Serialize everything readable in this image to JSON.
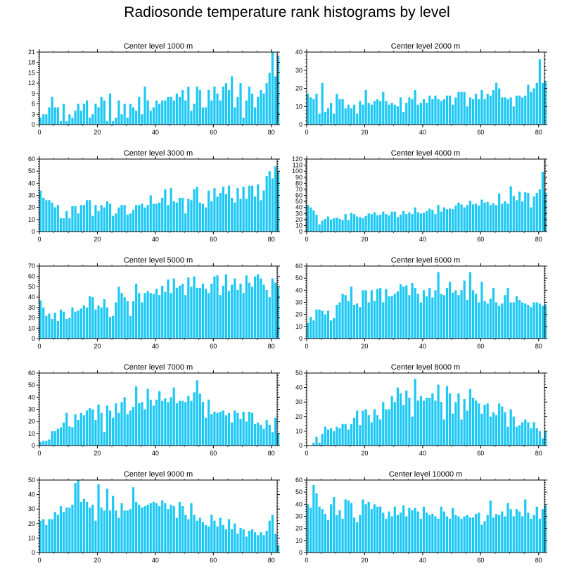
{
  "title": "Radiosonde temperature rank histograms by level",
  "colors": {
    "bar": "#1ec8f4",
    "axis": "#000000",
    "background": "#ffffff"
  },
  "chart_data": [
    {
      "type": "bar",
      "title": "Center level 1000 m",
      "ylim": [
        0,
        21
      ],
      "yticks": [
        0,
        3,
        6,
        9,
        12,
        15,
        18,
        21
      ],
      "xlim": [
        0,
        82
      ],
      "xticks": [
        0,
        20,
        40,
        60,
        80
      ],
      "values": [
        2,
        3,
        3,
        5,
        8,
        5,
        5,
        1,
        6,
        1,
        3,
        2,
        4,
        6,
        4,
        6,
        7,
        2,
        3,
        6,
        5,
        8,
        7,
        1,
        9,
        1,
        2,
        7,
        3,
        6,
        2,
        6,
        5,
        4,
        8,
        3,
        11,
        7,
        4,
        5,
        7,
        6,
        7,
        7,
        8,
        8,
        7,
        9,
        8,
        10,
        7,
        11,
        4,
        6,
        11,
        10,
        5,
        5,
        10,
        7,
        11,
        9,
        7,
        11,
        12,
        10,
        14,
        5,
        8,
        12,
        2,
        7,
        11,
        9,
        5,
        8,
        10,
        9,
        12,
        15,
        21,
        14,
        20
      ]
    },
    {
      "type": "bar",
      "title": "Center level 2000 m",
      "ylim": [
        0,
        40
      ],
      "yticks": [
        0,
        10,
        20,
        30,
        40
      ],
      "xlim": [
        0,
        82
      ],
      "xticks": [
        0,
        20,
        40,
        60,
        80
      ],
      "values": [
        17,
        15,
        14,
        17,
        6,
        23,
        7,
        9,
        12,
        6,
        17,
        14,
        14,
        9,
        11,
        9,
        11,
        6,
        13,
        11,
        19,
        12,
        11,
        13,
        14,
        13,
        18,
        13,
        11,
        12,
        11,
        10,
        15,
        7,
        12,
        15,
        14,
        19,
        11,
        12,
        14,
        12,
        16,
        14,
        16,
        14,
        13,
        14,
        16,
        16,
        11,
        15,
        18,
        18,
        18,
        10,
        15,
        14,
        17,
        14,
        19,
        14,
        17,
        16,
        19,
        23,
        20,
        15,
        15,
        14,
        15,
        10,
        16,
        16,
        15,
        16,
        22,
        18,
        20,
        23,
        36,
        23,
        24
      ]
    },
    {
      "type": "bar",
      "title": "Center level 3000 m",
      "ylim": [
        0,
        60
      ],
      "yticks": [
        0,
        10,
        20,
        30,
        40,
        50,
        60
      ],
      "xlim": [
        0,
        82
      ],
      "xticks": [
        0,
        20,
        40,
        60,
        80
      ],
      "values": [
        34,
        28,
        26,
        26,
        24,
        20,
        22,
        11,
        11,
        17,
        11,
        21,
        21,
        15,
        22,
        22,
        26,
        26,
        13,
        22,
        17,
        22,
        20,
        25,
        23,
        13,
        15,
        20,
        22,
        22,
        14,
        15,
        18,
        22,
        22,
        23,
        20,
        22,
        30,
        23,
        23,
        24,
        28,
        35,
        22,
        36,
        25,
        24,
        28,
        28,
        15,
        27,
        26,
        35,
        37,
        24,
        23,
        20,
        34,
        25,
        36,
        29,
        32,
        37,
        31,
        38,
        28,
        24,
        36,
        27,
        37,
        27,
        38,
        38,
        29,
        39,
        26,
        34,
        46,
        50,
        44,
        54,
        50
      ]
    },
    {
      "type": "bar",
      "title": "Center level 4000 m",
      "ylim": [
        0,
        120
      ],
      "yticks": [
        0,
        10,
        20,
        30,
        40,
        50,
        60,
        70,
        80,
        90,
        100,
        110,
        120
      ],
      "xlim": [
        0,
        82
      ],
      "xticks": [
        0,
        20,
        40,
        60,
        80
      ],
      "values": [
        44,
        40,
        35,
        28,
        12,
        18,
        21,
        25,
        20,
        22,
        23,
        21,
        19,
        29,
        19,
        31,
        29,
        25,
        24,
        22,
        26,
        30,
        29,
        32,
        27,
        28,
        33,
        29,
        27,
        33,
        33,
        24,
        28,
        34,
        29,
        32,
        29,
        40,
        32,
        30,
        31,
        34,
        38,
        36,
        29,
        44,
        33,
        40,
        37,
        38,
        37,
        43,
        48,
        45,
        40,
        44,
        51,
        45,
        46,
        43,
        53,
        48,
        49,
        44,
        47,
        44,
        63,
        46,
        50,
        46,
        75,
        59,
        52,
        66,
        50,
        65,
        64,
        40,
        58,
        64,
        70,
        99,
        65
      ]
    },
    {
      "type": "bar",
      "title": "Center level 5000 m",
      "ylim": [
        0,
        70
      ],
      "yticks": [
        0,
        10,
        20,
        30,
        40,
        50,
        60,
        70
      ],
      "xlim": [
        0,
        82
      ],
      "xticks": [
        0,
        20,
        40,
        60,
        80
      ],
      "values": [
        37,
        30,
        22,
        24,
        19,
        25,
        17,
        28,
        26,
        19,
        20,
        30,
        26,
        27,
        29,
        32,
        30,
        41,
        40,
        28,
        32,
        30,
        38,
        30,
        21,
        22,
        35,
        50,
        44,
        40,
        36,
        22,
        36,
        53,
        44,
        35,
        44,
        46,
        44,
        43,
        48,
        42,
        51,
        45,
        57,
        44,
        58,
        49,
        51,
        53,
        42,
        59,
        50,
        60,
        49,
        49,
        53,
        48,
        44,
        53,
        60,
        61,
        42,
        51,
        62,
        46,
        52,
        58,
        47,
        53,
        44,
        61,
        54,
        50,
        60,
        62,
        58,
        52,
        47,
        40,
        58,
        54,
        50
      ]
    },
    {
      "type": "bar",
      "title": "Center level 6000 m",
      "ylim": [
        0,
        60
      ],
      "yticks": [
        0,
        10,
        20,
        30,
        40,
        50,
        60
      ],
      "xlim": [
        0,
        82
      ],
      "xticks": [
        0,
        20,
        40,
        60,
        80
      ],
      "values": [
        13,
        18,
        15,
        24,
        24,
        23,
        20,
        23,
        15,
        17,
        28,
        30,
        37,
        36,
        31,
        43,
        28,
        29,
        26,
        40,
        40,
        30,
        40,
        31,
        41,
        42,
        30,
        41,
        35,
        35,
        37,
        39,
        45,
        43,
        44,
        36,
        46,
        42,
        37,
        30,
        40,
        35,
        42,
        34,
        40,
        55,
        37,
        36,
        42,
        47,
        38,
        40,
        36,
        40,
        48,
        32,
        55,
        40,
        37,
        30,
        47,
        31,
        29,
        33,
        42,
        30,
        27,
        29,
        36,
        42,
        30,
        30,
        35,
        32,
        30,
        29,
        28,
        26,
        30,
        30,
        29,
        27,
        28
      ]
    },
    {
      "type": "bar",
      "title": "Center level 7000 m",
      "ylim": [
        0,
        60
      ],
      "yticks": [
        0,
        10,
        20,
        30,
        40,
        50,
        60
      ],
      "xlim": [
        0,
        82
      ],
      "xticks": [
        0,
        20,
        40,
        60,
        80
      ],
      "values": [
        3,
        4,
        4,
        5,
        12,
        12,
        14,
        15,
        19,
        27,
        16,
        15,
        26,
        21,
        27,
        25,
        29,
        31,
        30,
        21,
        34,
        27,
        11,
        33,
        29,
        23,
        35,
        27,
        36,
        40,
        26,
        29,
        32,
        49,
        35,
        36,
        30,
        47,
        38,
        33,
        38,
        45,
        37,
        39,
        36,
        40,
        48,
        35,
        37,
        37,
        36,
        41,
        37,
        44,
        54,
        43,
        36,
        23,
        38,
        26,
        28,
        27,
        28,
        29,
        25,
        27,
        19,
        29,
        27,
        22,
        28,
        20,
        28,
        27,
        18,
        19,
        17,
        14,
        21,
        17,
        11,
        23,
        10
      ]
    },
    {
      "type": "bar",
      "title": "Center level 8000 m",
      "ylim": [
        0,
        50
      ],
      "yticks": [
        0,
        10,
        20,
        30,
        40,
        50
      ],
      "xlim": [
        0,
        82
      ],
      "xticks": [
        0,
        20,
        40,
        60,
        80
      ],
      "values": [
        0,
        0,
        2,
        6,
        2,
        8,
        13,
        11,
        12,
        10,
        13,
        12,
        15,
        15,
        11,
        15,
        19,
        24,
        14,
        24,
        25,
        21,
        16,
        25,
        21,
        18,
        30,
        25,
        25,
        34,
        30,
        40,
        36,
        28,
        38,
        33,
        20,
        46,
        31,
        34,
        31,
        33,
        33,
        36,
        31,
        42,
        30,
        18,
        41,
        36,
        22,
        30,
        36,
        18,
        32,
        24,
        39,
        33,
        31,
        29,
        22,
        28,
        29,
        20,
        23,
        21,
        29,
        27,
        23,
        13,
        25,
        20,
        13,
        14,
        16,
        18,
        16,
        12,
        16,
        12,
        10,
        5,
        10
      ]
    },
    {
      "type": "bar",
      "title": "Center level 9000 m",
      "ylim": [
        0,
        50
      ],
      "yticks": [
        0,
        10,
        20,
        30,
        40,
        50
      ],
      "xlim": [
        0,
        82
      ],
      "xticks": [
        0,
        20,
        40,
        60,
        80
      ],
      "values": [
        22,
        23,
        19,
        23,
        23,
        28,
        26,
        32,
        28,
        31,
        31,
        33,
        48,
        50,
        35,
        37,
        35,
        31,
        33,
        22,
        47,
        31,
        29,
        44,
        29,
        39,
        29,
        24,
        34,
        29,
        29,
        30,
        45,
        35,
        33,
        31,
        32,
        33,
        34,
        35,
        34,
        32,
        36,
        34,
        30,
        33,
        32,
        24,
        35,
        32,
        26,
        23,
        34,
        26,
        22,
        24,
        21,
        19,
        18,
        26,
        22,
        18,
        24,
        19,
        16,
        23,
        16,
        20,
        13,
        17,
        16,
        11,
        15,
        16,
        14,
        12,
        14,
        12,
        15,
        22,
        26,
        13,
        5
      ]
    },
    {
      "type": "bar",
      "title": "Center level 10000 m",
      "ylim": [
        0,
        60
      ],
      "yticks": [
        0,
        10,
        20,
        30,
        40,
        50,
        60
      ],
      "xlim": [
        0,
        82
      ],
      "xticks": [
        0,
        20,
        40,
        60,
        80
      ],
      "values": [
        40,
        37,
        56,
        49,
        38,
        36,
        32,
        27,
        40,
        46,
        31,
        35,
        28,
        44,
        43,
        41,
        29,
        25,
        31,
        44,
        40,
        42,
        36,
        40,
        38,
        38,
        33,
        28,
        34,
        30,
        38,
        31,
        33,
        39,
        30,
        37,
        35,
        37,
        34,
        28,
        38,
        33,
        31,
        32,
        30,
        28,
        38,
        34,
        30,
        28,
        37,
        31,
        30,
        28,
        30,
        31,
        29,
        29,
        32,
        33,
        23,
        26,
        31,
        43,
        29,
        32,
        31,
        34,
        30,
        41,
        36,
        30,
        36,
        34,
        30,
        44,
        33,
        28,
        31,
        38,
        28,
        36,
        39
      ]
    }
  ]
}
